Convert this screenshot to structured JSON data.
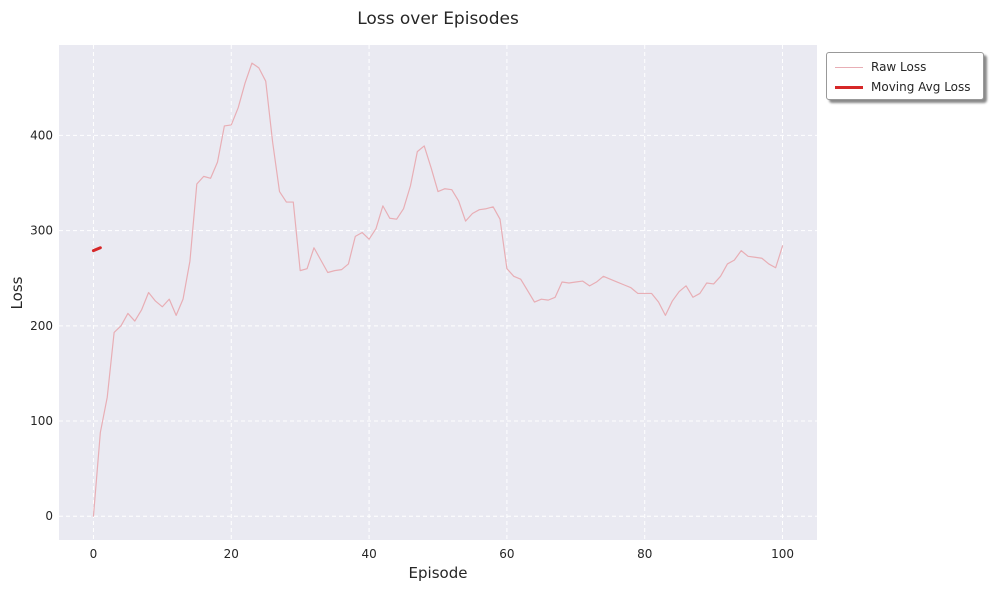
{
  "chart_data": {
    "type": "line",
    "title": "Loss over Episodes",
    "xlabel": "Episode",
    "ylabel": "Loss",
    "xlim": [
      -5,
      105
    ],
    "ylim": [
      -25,
      495
    ],
    "xticks": [
      0,
      20,
      40,
      60,
      80,
      100
    ],
    "yticks": [
      0,
      100,
      200,
      300,
      400
    ],
    "grid": true,
    "legend_position": "outside-top-right",
    "colors": {
      "plot_bg": "#eaeaf2",
      "grid": "#ffffff",
      "raw": "#e8aeb5",
      "avg": "#d62728"
    },
    "series": [
      {
        "name": "Raw Loss",
        "x": [
          0,
          1,
          2,
          3,
          4,
          5,
          6,
          7,
          8,
          9,
          10,
          11,
          12,
          13,
          14,
          15,
          16,
          17,
          18,
          19,
          20,
          21,
          22,
          23,
          24,
          25,
          26,
          27,
          28,
          29,
          30,
          31,
          32,
          33,
          34,
          35,
          36,
          37,
          38,
          39,
          40,
          41,
          42,
          43,
          44,
          45,
          46,
          47,
          48,
          49,
          50,
          51,
          52,
          53,
          54,
          55,
          56,
          57,
          58,
          59,
          60,
          61,
          62,
          63,
          64,
          65,
          66,
          67,
          68,
          69,
          70,
          71,
          72,
          73,
          74,
          75,
          76,
          77,
          78,
          79,
          80,
          81,
          82,
          83,
          84,
          85,
          86,
          87,
          88,
          89,
          90,
          91,
          92,
          93,
          94,
          95,
          96,
          97,
          98,
          99,
          100
        ],
        "y": [
          0,
          88,
          125,
          193,
          200,
          213,
          205,
          217,
          235,
          226,
          220,
          228,
          211,
          228,
          268,
          349,
          357,
          355,
          372,
          410,
          411,
          429,
          455,
          476,
          471,
          457,
          393,
          341,
          330,
          330,
          258,
          260,
          282,
          269,
          256,
          258,
          259,
          265,
          294,
          298,
          291,
          302,
          326,
          313,
          312,
          323,
          347,
          383,
          389,
          366,
          341,
          344,
          343,
          331,
          310,
          318,
          322,
          323,
          325,
          312,
          260,
          252,
          249,
          237,
          225,
          228,
          227,
          230,
          246,
          245,
          246,
          247,
          242,
          246,
          252,
          249,
          246,
          243,
          240,
          234,
          234,
          234,
          225,
          211,
          226,
          236,
          242,
          230,
          234,
          245,
          244,
          252,
          265,
          269,
          279,
          273,
          272,
          271,
          265,
          261,
          284
        ]
      },
      {
        "name": "Moving Avg Loss",
        "x": [
          0,
          1
        ],
        "y": [
          279,
          282
        ]
      }
    ]
  }
}
